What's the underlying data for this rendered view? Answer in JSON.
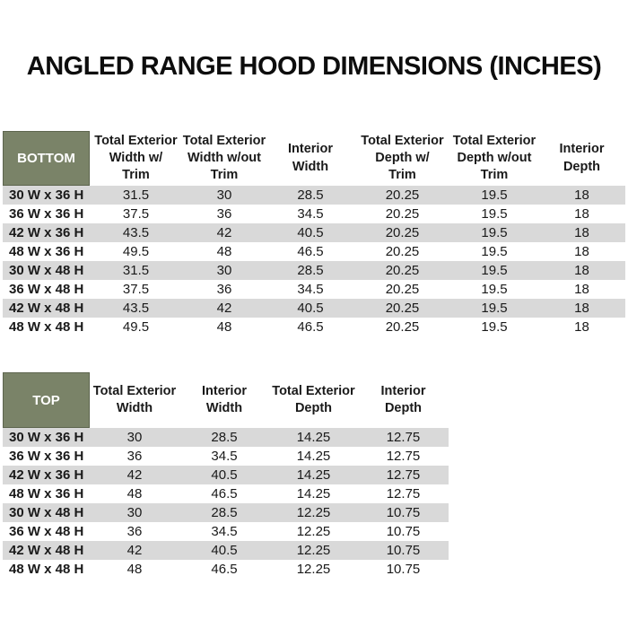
{
  "title": "ANGLED RANGE HOOD DIMENSIONS (INCHES)",
  "colors": {
    "corner_green": "#7A8368",
    "corner_border": "#5d654e",
    "stripe_gray": "#D9D9D9",
    "text": "#1a1a1a"
  },
  "bottom_table": {
    "label": "BOTTOM",
    "columns": [
      "Total Exterior\nWidth w/\nTrim",
      "Total Exterior\nWidth w/out\nTrim",
      "Interior\nWidth",
      "Total Exterior\nDepth w/\nTrim",
      "Total Exterior\nDepth w/out\nTrim",
      "Interior\nDepth"
    ],
    "rows": [
      {
        "label": "30 W x 36 H",
        "values": [
          "31.5",
          "30",
          "28.5",
          "20.25",
          "19.5",
          "18"
        ]
      },
      {
        "label": "36 W x 36 H",
        "values": [
          "37.5",
          "36",
          "34.5",
          "20.25",
          "19.5",
          "18"
        ]
      },
      {
        "label": "42 W x 36 H",
        "values": [
          "43.5",
          "42",
          "40.5",
          "20.25",
          "19.5",
          "18"
        ]
      },
      {
        "label": "48 W x 36 H",
        "values": [
          "49.5",
          "48",
          "46.5",
          "20.25",
          "19.5",
          "18"
        ]
      },
      {
        "label": "30 W x 48 H",
        "values": [
          "31.5",
          "30",
          "28.5",
          "20.25",
          "19.5",
          "18"
        ]
      },
      {
        "label": "36 W x 48 H",
        "values": [
          "37.5",
          "36",
          "34.5",
          "20.25",
          "19.5",
          "18"
        ]
      },
      {
        "label": "42 W x 48 H",
        "values": [
          "43.5",
          "42",
          "40.5",
          "20.25",
          "19.5",
          "18"
        ]
      },
      {
        "label": "48 W x 48 H",
        "values": [
          "49.5",
          "48",
          "46.5",
          "20.25",
          "19.5",
          "18"
        ]
      }
    ]
  },
  "top_table": {
    "label": "TOP",
    "columns": [
      "Total Exterior\nWidth",
      "Interior\nWidth",
      "Total Exterior\nDepth",
      "Interior\nDepth"
    ],
    "rows": [
      {
        "label": "30 W x 36 H",
        "values": [
          "30",
          "28.5",
          "14.25",
          "12.75"
        ]
      },
      {
        "label": "36 W x 36 H",
        "values": [
          "36",
          "34.5",
          "14.25",
          "12.75"
        ]
      },
      {
        "label": "42 W x 36 H",
        "values": [
          "42",
          "40.5",
          "14.25",
          "12.75"
        ]
      },
      {
        "label": "48 W x 36 H",
        "values": [
          "48",
          "46.5",
          "14.25",
          "12.75"
        ]
      },
      {
        "label": "30 W x 48 H",
        "values": [
          "30",
          "28.5",
          "12.25",
          "10.75"
        ]
      },
      {
        "label": "36 W x 48 H",
        "values": [
          "36",
          "34.5",
          "12.25",
          "10.75"
        ]
      },
      {
        "label": "42 W x 48 H",
        "values": [
          "42",
          "40.5",
          "12.25",
          "10.75"
        ]
      },
      {
        "label": "48 W x 48 H",
        "values": [
          "48",
          "46.5",
          "12.25",
          "10.75"
        ]
      }
    ]
  }
}
